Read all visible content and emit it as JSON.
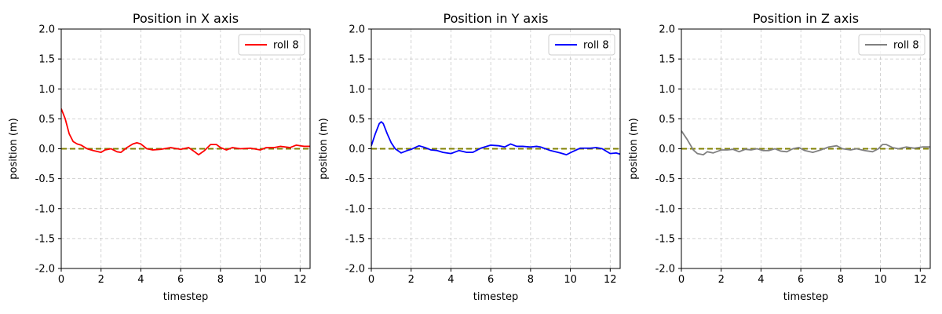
{
  "chart_data": [
    {
      "type": "line",
      "title": "Position in X axis",
      "xlabel": "timestep",
      "ylabel": "position (m)",
      "xlim": [
        0,
        12.5
      ],
      "ylim": [
        -2.0,
        2.0
      ],
      "xticks": [
        0,
        2,
        4,
        6,
        8,
        10,
        12
      ],
      "yticks": [
        -2.0,
        -1.5,
        -1.0,
        -0.5,
        0.0,
        0.5,
        1.0,
        1.5,
        2.0
      ],
      "grid": true,
      "legend_position": "top-right",
      "reference_line": {
        "y": 0.0,
        "color": "#808000",
        "style": "dashed"
      },
      "series": [
        {
          "name": "roll 8",
          "color": "#ff0000",
          "x": [
            0,
            0.2,
            0.4,
            0.6,
            0.8,
            1.0,
            1.3,
            1.6,
            2.0,
            2.2,
            2.5,
            2.8,
            3.0,
            3.3,
            3.6,
            3.8,
            4.0,
            4.3,
            4.6,
            5.0,
            5.5,
            6.0,
            6.4,
            6.7,
            6.9,
            7.2,
            7.5,
            7.8,
            8.0,
            8.3,
            8.6,
            9.0,
            9.5,
            10.0,
            10.3,
            10.7,
            11.0,
            11.5,
            11.8,
            12.2,
            12.5
          ],
          "y": [
            0.67,
            0.5,
            0.25,
            0.12,
            0.08,
            0.06,
            0.0,
            -0.03,
            -0.06,
            -0.02,
            0.0,
            -0.05,
            -0.06,
            0.02,
            0.08,
            0.1,
            0.08,
            0.0,
            -0.02,
            -0.01,
            0.02,
            -0.01,
            0.02,
            -0.05,
            -0.1,
            -0.03,
            0.07,
            0.07,
            0.02,
            -0.02,
            0.02,
            0.0,
            0.01,
            -0.02,
            0.02,
            0.02,
            0.04,
            0.02,
            0.06,
            0.04,
            0.04
          ]
        }
      ]
    },
    {
      "type": "line",
      "title": "Position in Y axis",
      "xlabel": "timestep",
      "ylabel": "position (m)",
      "xlim": [
        0,
        12.5
      ],
      "ylim": [
        -2.0,
        2.0
      ],
      "xticks": [
        0,
        2,
        4,
        6,
        8,
        10,
        12
      ],
      "yticks": [
        -2.0,
        -1.5,
        -1.0,
        -0.5,
        0.0,
        0.5,
        1.0,
        1.5,
        2.0
      ],
      "grid": true,
      "legend_position": "top-right",
      "reference_line": {
        "y": 0.0,
        "color": "#808000",
        "style": "dashed"
      },
      "series": [
        {
          "name": "roll 8",
          "color": "#0000ff",
          "x": [
            0,
            0.2,
            0.4,
            0.5,
            0.6,
            0.8,
            1.0,
            1.2,
            1.5,
            1.8,
            2.0,
            2.2,
            2.4,
            2.7,
            3.0,
            3.3,
            3.6,
            4.0,
            4.4,
            4.8,
            5.1,
            5.5,
            6.0,
            6.4,
            6.7,
            7.0,
            7.3,
            7.6,
            8.0,
            8.3,
            8.5,
            9.0,
            9.5,
            9.8,
            10.1,
            10.5,
            11.0,
            11.3,
            11.6,
            12.0,
            12.3,
            12.5
          ],
          "y": [
            0.05,
            0.25,
            0.42,
            0.45,
            0.42,
            0.25,
            0.1,
            0.0,
            -0.07,
            -0.03,
            -0.01,
            0.02,
            0.05,
            0.02,
            -0.02,
            -0.03,
            -0.06,
            -0.08,
            -0.03,
            -0.06,
            -0.06,
            0.01,
            0.06,
            0.05,
            0.03,
            0.08,
            0.04,
            0.04,
            0.03,
            0.04,
            0.03,
            -0.03,
            -0.07,
            -0.1,
            -0.05,
            0.01,
            0.01,
            0.02,
            0.0,
            -0.08,
            -0.07,
            -0.09
          ]
        }
      ]
    },
    {
      "type": "line",
      "title": "Position in Z axis",
      "xlabel": "timestep",
      "ylabel": "position (m)",
      "xlim": [
        0,
        12.5
      ],
      "ylim": [
        -2.0,
        2.0
      ],
      "xticks": [
        0,
        2,
        4,
        6,
        8,
        10,
        12
      ],
      "yticks": [
        -2.0,
        -1.5,
        -1.0,
        -0.5,
        0.0,
        0.5,
        1.0,
        1.5,
        2.0
      ],
      "grid": true,
      "legend_position": "top-right",
      "reference_line": {
        "y": 0.0,
        "color": "#808000",
        "style": "dashed"
      },
      "series": [
        {
          "name": "roll 8",
          "color": "#808080",
          "x": [
            0,
            0.3,
            0.6,
            0.8,
            1.1,
            1.3,
            1.6,
            2.0,
            2.3,
            2.6,
            2.9,
            3.2,
            3.5,
            3.8,
            4.1,
            4.4,
            4.7,
            5.0,
            5.3,
            5.6,
            5.9,
            6.2,
            6.6,
            7.0,
            7.4,
            7.8,
            8.1,
            8.5,
            8.8,
            9.2,
            9.6,
            9.9,
            10.1,
            10.3,
            10.6,
            10.9,
            11.3,
            11.7,
            12.1,
            12.5
          ],
          "y": [
            0.3,
            0.15,
            -0.02,
            -0.08,
            -0.1,
            -0.05,
            -0.07,
            -0.02,
            -0.02,
            -0.01,
            -0.05,
            -0.01,
            -0.02,
            0.0,
            -0.03,
            -0.03,
            0.0,
            -0.04,
            -0.05,
            0.0,
            0.02,
            -0.03,
            -0.06,
            -0.02,
            0.03,
            0.05,
            0.0,
            -0.02,
            0.0,
            -0.03,
            -0.05,
            0.0,
            0.07,
            0.07,
            0.02,
            0.0,
            0.03,
            0.01,
            0.03,
            0.03
          ]
        }
      ]
    }
  ]
}
